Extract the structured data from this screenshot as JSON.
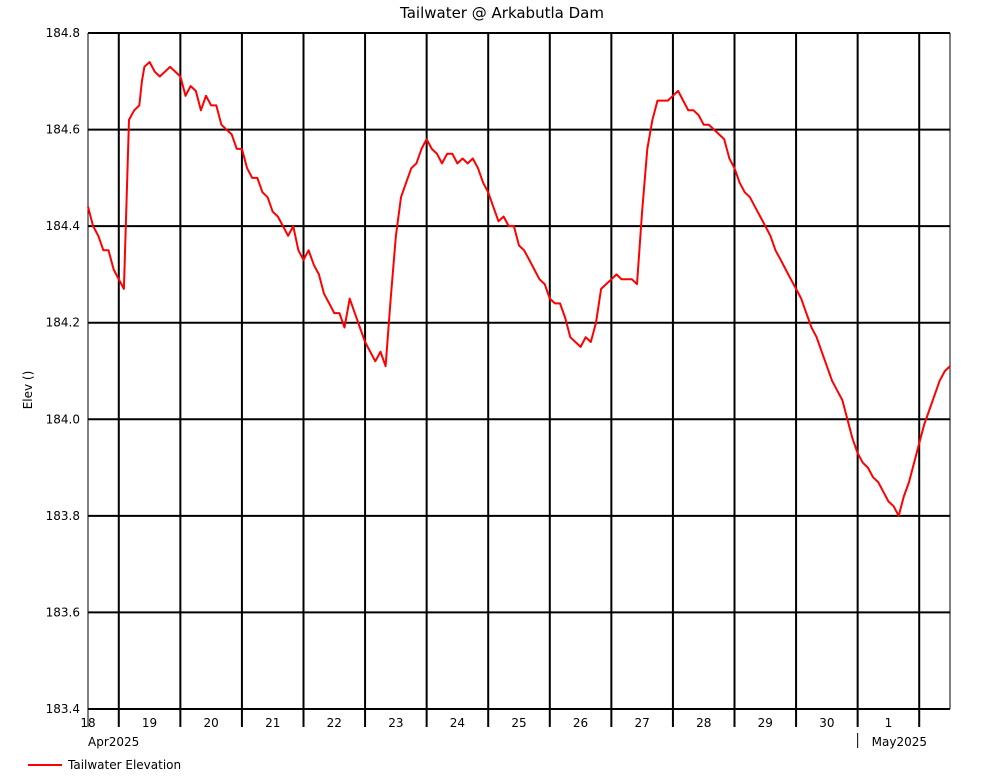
{
  "chart_data": {
    "type": "line",
    "title": "Tailwater @ Arkabutla Dam",
    "ylabel": "Elev ()",
    "xlabel": "",
    "ylim": [
      183.4,
      184.8
    ],
    "yticks": [
      "184.8",
      "184.6",
      "184.4",
      "184.2",
      "184.0",
      "183.8",
      "183.6",
      "183.4"
    ],
    "xlim": [
      "2025-04-17 12:00",
      "2025-05-01 12:00"
    ],
    "day_labels": [
      "18",
      "19",
      "20",
      "21",
      "22",
      "23",
      "24",
      "25",
      "26",
      "27",
      "28",
      "29",
      "30",
      "1"
    ],
    "month_labels": [
      "Apr2025",
      "May2025"
    ],
    "grid": true,
    "legend": "bottom-left",
    "colors": {
      "series": "#ff0000",
      "grid": "#000000"
    },
    "series": [
      {
        "name": "Tailwater Elevation",
        "x": [
          0,
          2,
          4,
          6,
          8,
          10,
          12,
          14,
          16,
          18,
          20,
          21,
          22,
          24,
          26,
          28,
          30,
          32,
          34,
          36,
          38,
          40,
          42,
          44,
          46,
          48,
          50,
          52,
          54,
          56,
          58,
          60,
          62,
          64,
          66,
          68,
          70,
          72,
          74,
          76,
          78,
          80,
          82,
          84,
          86,
          88,
          90,
          92,
          94,
          96,
          98,
          100,
          102,
          104,
          106,
          108,
          110,
          112,
          114,
          116,
          118,
          120,
          122,
          124,
          126,
          128,
          130,
          132,
          134,
          136,
          138,
          140,
          142,
          144,
          146,
          148,
          150,
          152,
          154,
          156,
          158,
          160,
          162,
          164,
          166,
          168,
          170,
          172,
          174,
          176,
          178,
          180,
          182,
          184,
          186,
          188,
          190,
          192,
          194,
          196,
          198,
          200,
          202,
          204,
          206,
          208,
          210,
          212,
          214,
          216,
          218,
          220,
          222,
          224,
          226,
          228,
          230,
          232,
          234,
          236,
          238,
          240,
          242,
          244,
          246,
          248,
          250,
          252,
          254,
          256,
          258,
          260,
          262,
          264,
          266,
          268,
          270,
          272,
          274,
          276,
          278,
          280,
          282,
          284,
          286,
          288,
          290,
          292,
          294,
          296,
          298,
          300,
          302,
          304,
          306,
          308,
          310,
          312,
          314,
          316,
          318,
          320,
          322,
          324,
          326,
          328,
          330,
          332,
          334,
          336
        ],
        "y": [
          184.44,
          184.4,
          184.38,
          184.35,
          184.35,
          184.31,
          184.29,
          184.27,
          184.62,
          184.64,
          184.65,
          184.7,
          184.73,
          184.74,
          184.72,
          184.71,
          184.72,
          184.73,
          184.72,
          184.71,
          184.67,
          184.69,
          184.68,
          184.64,
          184.67,
          184.65,
          184.65,
          184.61,
          184.6,
          184.59,
          184.56,
          184.56,
          184.52,
          184.5,
          184.5,
          184.47,
          184.46,
          184.43,
          184.42,
          184.4,
          184.38,
          184.4,
          184.35,
          184.33,
          184.35,
          184.32,
          184.3,
          184.26,
          184.24,
          184.22,
          184.22,
          184.19,
          184.25,
          184.22,
          184.19,
          184.16,
          184.14,
          184.12,
          184.14,
          184.11,
          184.25,
          184.38,
          184.46,
          184.49,
          184.52,
          184.53,
          184.56,
          184.58,
          184.56,
          184.55,
          184.53,
          184.55,
          184.55,
          184.53,
          184.54,
          184.53,
          184.54,
          184.52,
          184.49,
          184.47,
          184.44,
          184.41,
          184.42,
          184.4,
          184.4,
          184.36,
          184.35,
          184.33,
          184.31,
          184.29,
          184.28,
          184.25,
          184.24,
          184.24,
          184.21,
          184.17,
          184.16,
          184.15,
          184.17,
          184.16,
          184.2,
          184.27,
          184.28,
          184.29,
          184.3,
          184.29,
          184.29,
          184.29,
          184.28,
          184.43,
          184.56,
          184.62,
          184.66,
          184.66,
          184.66,
          184.67,
          184.68,
          184.66,
          184.64,
          184.64,
          184.63,
          184.61,
          184.61,
          184.6,
          184.59,
          184.58,
          184.54,
          184.52,
          184.49,
          184.47,
          184.46,
          184.44,
          184.42,
          184.4,
          184.38,
          184.35,
          184.33,
          184.31,
          184.29,
          184.27,
          184.25,
          184.22,
          184.19,
          184.17,
          184.14,
          184.11,
          184.08,
          184.06,
          184.04,
          184.0,
          183.96,
          183.93,
          183.91,
          183.9,
          183.88,
          183.87,
          183.85,
          183.83,
          183.82,
          183.8,
          183.84,
          183.87,
          183.91,
          183.95,
          183.99,
          184.02,
          184.05,
          184.08,
          184.1,
          184.11
        ]
      }
    ]
  }
}
